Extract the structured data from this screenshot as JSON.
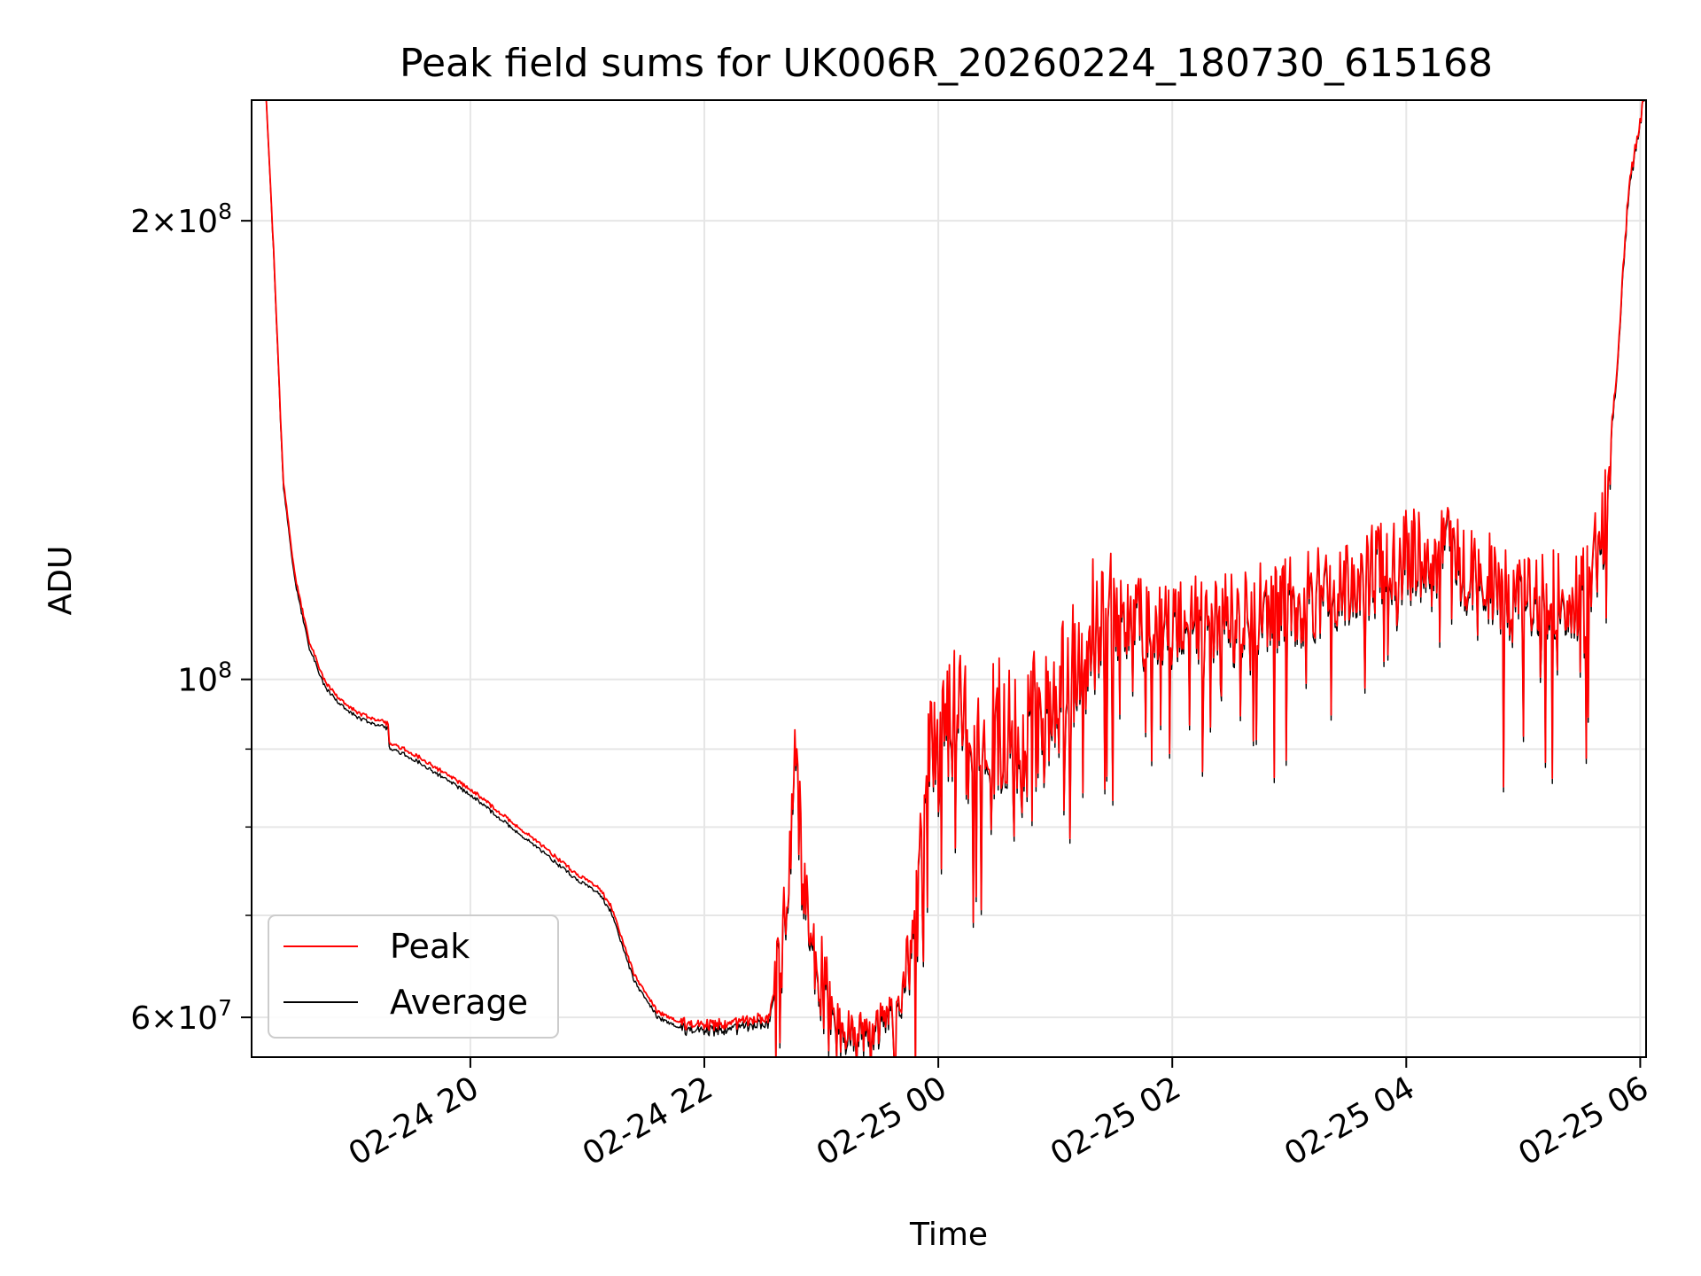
{
  "chart_data": {
    "type": "line",
    "title": "Peak field sums for UK006R_20260224_180730_615168",
    "xlabel": "Time",
    "ylabel": "ADU",
    "yscale": "log",
    "grid": true,
    "legend_position": "lower-left",
    "x_unit": "hours since 02-24 00:00",
    "xlim": [
      18.13,
      30.05
    ],
    "ylim": [
      56500000,
      240000000
    ],
    "x_ticks": [
      {
        "value": 20,
        "label": "02-24 20"
      },
      {
        "value": 22,
        "label": "02-24 22"
      },
      {
        "value": 24,
        "label": "02-25 00"
      },
      {
        "value": 26,
        "label": "02-25 02"
      },
      {
        "value": 28,
        "label": "02-25 04"
      },
      {
        "value": 30,
        "label": "02-25 06"
      }
    ],
    "y_ticks": [
      {
        "value": 60000000,
        "mantissa": "6",
        "exponent": "7"
      },
      {
        "value": 100000000,
        "mantissa": "",
        "exponent": "8"
      },
      {
        "value": 200000000,
        "mantissa": "2",
        "exponent": "8"
      }
    ],
    "y_minor_ticks": [
      70000000,
      80000000,
      90000000
    ],
    "series": [
      {
        "name": "Peak",
        "color": "#ff0000",
        "x": [
          18.13,
          18.25,
          18.32,
          18.4,
          18.5,
          18.62,
          18.76,
          18.9,
          19.05,
          19.3,
          19.3,
          19.5,
          20.0,
          20.5,
          20.9,
          21.1,
          21.2,
          21.4,
          21.6,
          21.8,
          22.0,
          22.3,
          22.55,
          22.6,
          22.7,
          22.78,
          22.85,
          22.95,
          23.05,
          23.15,
          23.3,
          23.5,
          23.65,
          23.8,
          23.9,
          24.0,
          24.15,
          24.3,
          24.5,
          24.7,
          24.9,
          25.1,
          25.3,
          25.5,
          26.0,
          26.5,
          27.0,
          27.5,
          28.0,
          28.3,
          28.7,
          29.0,
          29.3,
          29.5,
          29.68,
          29.8,
          29.9,
          30.05
        ],
        "y": [
          245000000,
          245000000,
          190000000,
          135000000,
          117000000,
          106000000,
          99500000,
          96700000,
          95000000,
          93500000,
          91000000,
          89500000,
          84700000,
          79000000,
          74600000,
          73000000,
          71000000,
          64000000,
          60500000,
          59500000,
          59200000,
          59500000,
          60000000,
          63000000,
          70000000,
          90000000,
          72000000,
          65000000,
          62000000,
          59000000,
          59000000,
          59500000,
          60500000,
          70000000,
          90000000,
          92000000,
          95000000,
          93000000,
          93000000,
          94000000,
          96000000,
          99000000,
          108000000,
          110000000,
          109000000,
          110000000,
          113000000,
          116000000,
          121000000,
          122000000,
          117000000,
          112000000,
          114000000,
          115000000,
          125000000,
          160000000,
          210000000,
          245000000
        ]
      },
      {
        "name": "Average",
        "color": "#000000",
        "x": [
          18.13,
          18.25,
          18.32,
          18.4,
          18.5,
          18.62,
          18.76,
          18.9,
          19.05,
          19.3,
          19.3,
          19.5,
          20.0,
          20.5,
          20.9,
          21.1,
          21.2,
          21.4,
          21.6,
          21.8,
          22.0,
          22.3,
          22.55,
          22.6,
          22.7,
          22.78,
          22.85,
          22.95,
          23.05,
          23.15,
          23.3,
          23.5,
          23.65,
          23.8,
          23.9,
          24.0,
          24.15,
          24.3,
          24.5,
          24.7,
          24.9,
          25.1,
          25.3,
          25.5,
          26.0,
          26.5,
          27.0,
          27.5,
          28.0,
          28.3,
          28.7,
          29.0,
          29.3,
          29.5,
          29.68,
          29.8,
          29.9,
          30.05
        ],
        "y": [
          245000000,
          245000000,
          189000000,
          134000000,
          116000000,
          105000000,
          98700000,
          96000000,
          94300000,
          92800000,
          90300000,
          88800000,
          84000000,
          78300000,
          74000000,
          72400000,
          70400000,
          63400000,
          60000000,
          59000000,
          58700000,
          59000000,
          59500000,
          62500000,
          69400000,
          89300000,
          71400000,
          64500000,
          61500000,
          58500000,
          58500000,
          59000000,
          60000000,
          69400000,
          89300000,
          91300000,
          94300000,
          92300000,
          92300000,
          93300000,
          95300000,
          98300000,
          107200000,
          109200000,
          108200000,
          109200000,
          112100000,
          115100000,
          120000000,
          121000000,
          116100000,
          111100000,
          113100000,
          114100000,
          124000000,
          158800000,
          208400000,
          245000000
        ]
      }
    ]
  }
}
